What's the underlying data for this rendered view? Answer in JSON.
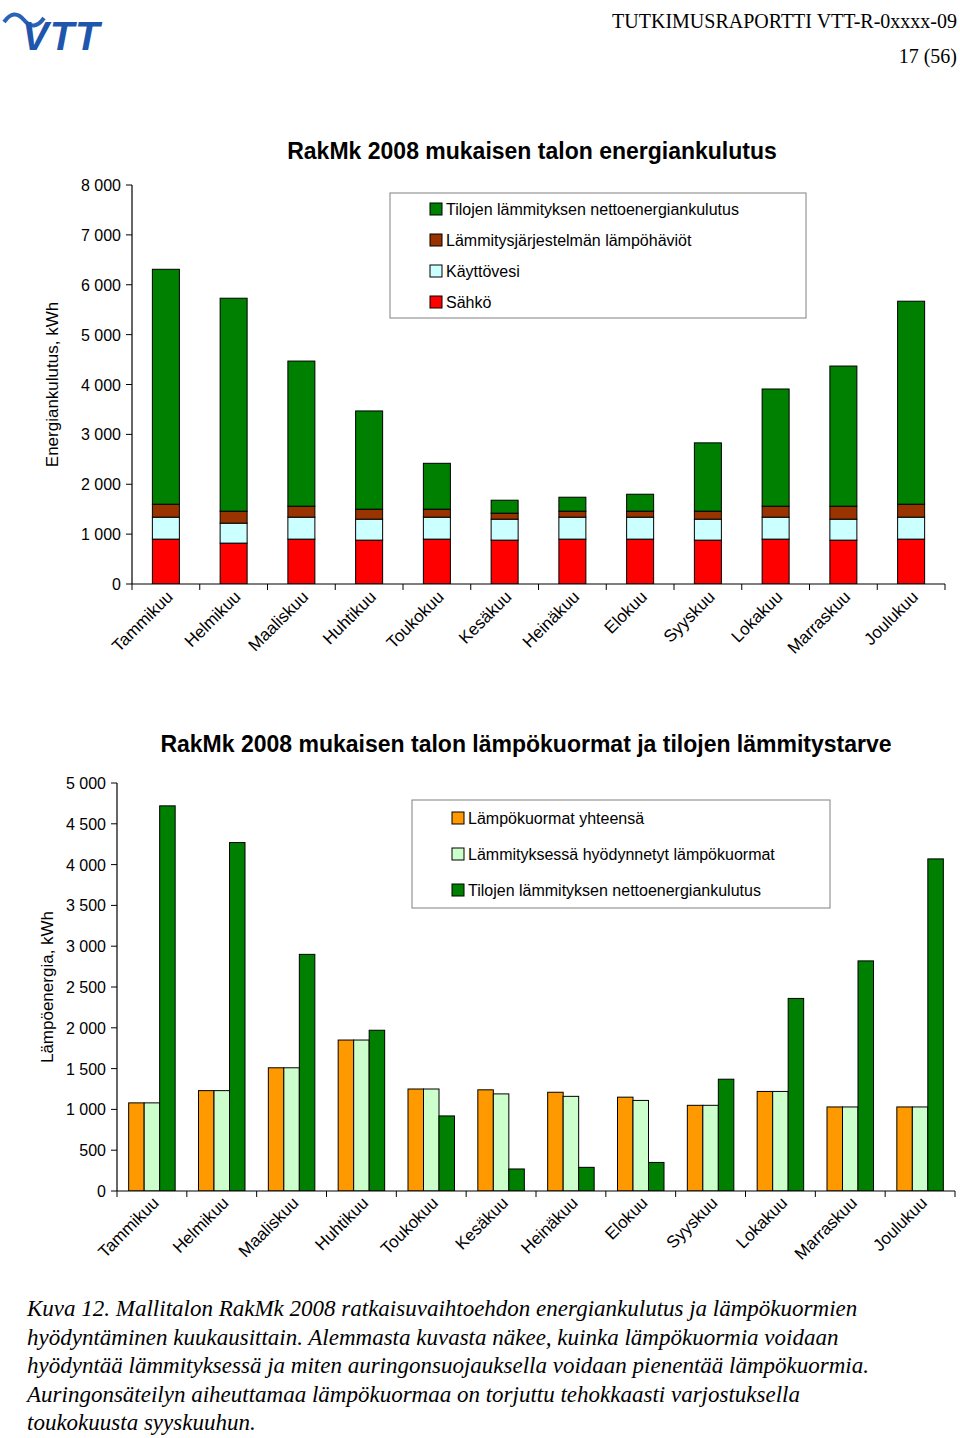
{
  "header": {
    "logo": "VTT",
    "report": "TUTKIMUSRAPORTTI VTT-R-0xxxx-09",
    "page": "17 (56)"
  },
  "chart_data": [
    {
      "type": "bar",
      "title": "RakMk 2008 mukaisen talon energiankulutus",
      "y_label": "Energiankulutus, kWh",
      "stacked": true,
      "grid": false,
      "legend": "top",
      "categories": [
        "Tammikuu",
        "Helmikuu",
        "Maaliskuu",
        "Huhtikuu",
        "Toukokuu",
        "Kesäkuu",
        "Heinäkuu",
        "Elokuu",
        "Syyskuu",
        "Lokakuu",
        "Marraskuu",
        "Joulukuu"
      ],
      "ylim": [
        0,
        8000
      ],
      "yticks": [
        0,
        {
          "value": 1000,
          "label": "1 000"
        },
        {
          "value": 2000,
          "label": "2 000"
        },
        {
          "value": 3000,
          "label": "3 000"
        },
        {
          "value": 4000,
          "label": "4 000"
        },
        {
          "value": 5000,
          "label": "5 000"
        },
        {
          "value": 6000,
          "label": "6 000"
        },
        {
          "value": 7000,
          "label": "7 000"
        },
        {
          "value": 8000,
          "label": "8 000"
        }
      ],
      "series": [
        {
          "name": "Sähkö",
          "color": "#ff0000",
          "values": [
            900,
            820,
            900,
            880,
            900,
            880,
            900,
            900,
            880,
            900,
            880,
            900
          ]
        },
        {
          "name": "Käyttövesi",
          "color": "#ccffff",
          "values": [
            440,
            400,
            440,
            420,
            440,
            420,
            440,
            440,
            420,
            440,
            420,
            440
          ]
        },
        {
          "name": "Lämmitysjärjestelmän lämpöhäviöt",
          "color": "#993300",
          "values": [
            260,
            240,
            220,
            200,
            160,
            120,
            120,
            120,
            160,
            220,
            260,
            260
          ]
        },
        {
          "name": "Tilojen lämmityksen nettoenergiankulutus",
          "color": "#008000",
          "values": [
            4710,
            4270,
            2910,
            1970,
            920,
            260,
            280,
            340,
            1370,
            2350,
            2810,
            4070
          ]
        }
      ]
    },
    {
      "type": "bar",
      "title": "RakMk 2008 mukaisen talon lämpökuormat ja tilojen lämmitystarve",
      "y_label": "Lämpöenergia, kWh",
      "stacked": false,
      "grid": false,
      "legend": "top",
      "categories": [
        "Tammikuu",
        "Helmikuu",
        "Maaliskuu",
        "Huhtikuu",
        "Toukokuu",
        "Kesäkuu",
        "Heinäkuu",
        "Elokuu",
        "Syyskuu",
        "Lokakuu",
        "Marraskuu",
        "Joulukuu"
      ],
      "ylim": [
        0,
        5000
      ],
      "yticks": [
        0,
        500,
        {
          "value": 1000,
          "label": "1 000"
        },
        {
          "value": 1500,
          "label": "1 500"
        },
        {
          "value": 2000,
          "label": "2 000"
        },
        {
          "value": 2500,
          "label": "2 500"
        },
        {
          "value": 3000,
          "label": "3 000"
        },
        {
          "value": 3500,
          "label": "3 500"
        },
        {
          "value": 4000,
          "label": "4 000"
        },
        {
          "value": 4500,
          "label": "4 500"
        },
        {
          "value": 5000,
          "label": "5 000"
        }
      ],
      "series": [
        {
          "name": "Lämpökuormat yhteensä",
          "color": "#ff9900",
          "values": [
            1080,
            1230,
            1510,
            1850,
            1250,
            1240,
            1210,
            1150,
            1050,
            1220,
            1030,
            1030
          ]
        },
        {
          "name": "Lämmityksessä hyödynnetyt lämpökuormat",
          "color": "#ccffcc",
          "values": [
            1080,
            1230,
            1510,
            1850,
            1250,
            1190,
            1160,
            1110,
            1050,
            1220,
            1030,
            1030
          ]
        },
        {
          "name": "Tilojen lämmityksen nettoenergiankulutus",
          "color": "#008000",
          "values": [
            4720,
            4270,
            2900,
            1970,
            920,
            270,
            290,
            350,
            1370,
            2360,
            2820,
            4070
          ]
        }
      ]
    }
  ],
  "caption": [
    "Kuva 12. Mallitalon RakMk 2008 ratkaisuvaihtoehdon energiankulutus ja lämpökuormien",
    "hyödyntäminen kuukausittain. Alemmasta kuvasta näkee, kuinka lämpökuormia voidaan",
    "hyödyntää lämmityksessä ja miten auringonsuojauksella voidaan pienentää lämpökuormia.",
    "Auringonsäteilyn aiheuttamaa lämpökuormaa on torjuttu tehokkaasti varjostuksella",
    "toukokuusta syyskuuhun."
  ]
}
